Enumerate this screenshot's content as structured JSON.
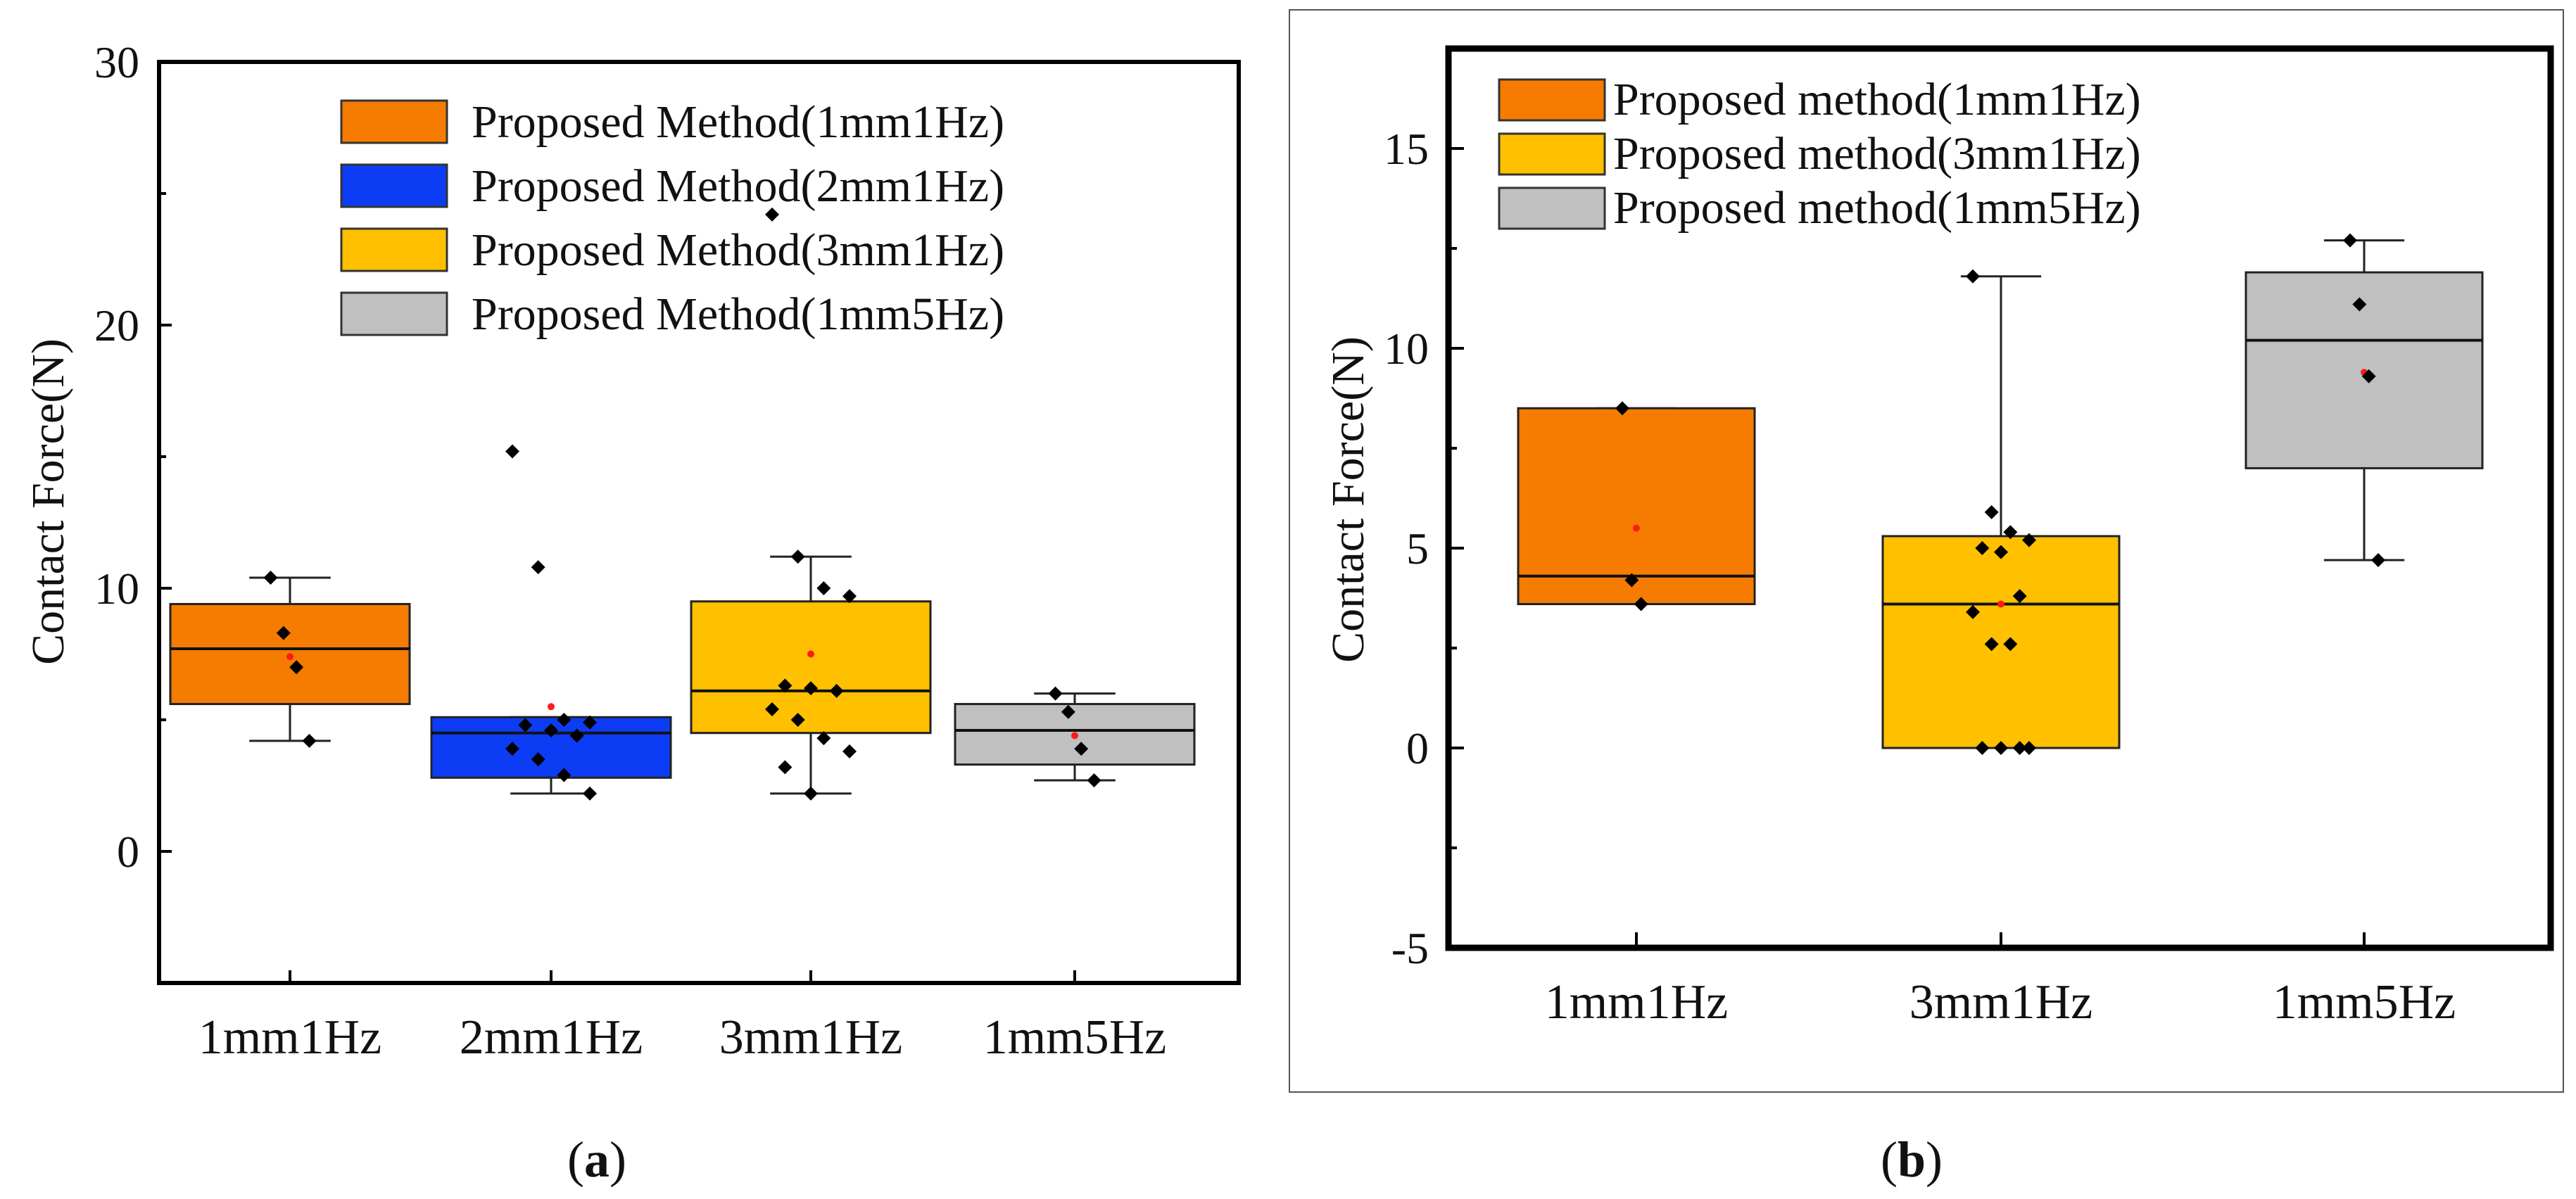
{
  "chart_data": [
    {
      "type": "box",
      "panel": "a",
      "ylabel": "Contact Force(N)",
      "ylim": [
        -5,
        30
      ],
      "yticks": [
        0,
        10,
        20,
        30
      ],
      "categories": [
        "1mm1Hz",
        "2mm1Hz",
        "3mm1Hz",
        "1mm5Hz"
      ],
      "legend_position": "top-right",
      "series": [
        {
          "name": "Proposed Method(1mm1Hz)",
          "color": "#f57c00",
          "q1": 5.6,
          "median": 7.7,
          "q3": 9.4,
          "whisker_low": 4.2,
          "whisker_high": 10.4,
          "mean": 7.4,
          "points": [
            10.4,
            8.3,
            7.0,
            4.2
          ]
        },
        {
          "name": "Proposed Method(2mm1Hz)",
          "color": "#0d3cf5",
          "q1": 2.8,
          "median": 4.5,
          "q3": 5.1,
          "whisker_low": 2.2,
          "whisker_high": 5.1,
          "mean": 5.5,
          "points": [
            15.2,
            10.8,
            5.0,
            4.9,
            4.8,
            4.6,
            4.4,
            3.9,
            3.5,
            2.9,
            2.2
          ]
        },
        {
          "name": "Proposed Method(3mm1Hz)",
          "color": "#ffc000",
          "q1": 4.5,
          "median": 6.1,
          "q3": 9.5,
          "whisker_low": 2.2,
          "whisker_high": 11.2,
          "mean": 7.5,
          "points": [
            24.2,
            11.2,
            10.0,
            9.7,
            6.3,
            6.2,
            6.1,
            5.4,
            5.0,
            4.3,
            3.8,
            3.2,
            2.2
          ]
        },
        {
          "name": "Proposed Method(1mm5Hz)",
          "color": "#c0c0c0",
          "q1": 3.3,
          "median": 4.6,
          "q3": 5.6,
          "whisker_low": 2.7,
          "whisker_high": 6.0,
          "mean": 4.4,
          "points": [
            6.0,
            5.3,
            3.9,
            2.7
          ]
        }
      ]
    },
    {
      "type": "box",
      "panel": "b",
      "ylabel": "Contact Force(N)",
      "ylim": [
        -5,
        17.5
      ],
      "yticks": [
        -5,
        0,
        5,
        10,
        15
      ],
      "categories": [
        "1mm1Hz",
        "3mm1Hz",
        "1mm5Hz"
      ],
      "legend_position": "top-left",
      "series": [
        {
          "name": "Proposed method(1mm1Hz)",
          "color": "#f57c00",
          "q1": 3.6,
          "median": 4.3,
          "q3": 8.5,
          "whisker_low": 3.6,
          "whisker_high": 8.5,
          "mean": 5.5,
          "points": [
            8.5,
            4.2,
            3.6
          ]
        },
        {
          "name": "Proposed method(3mm1Hz)",
          "color": "#ffc000",
          "q1": 0,
          "median": 3.6,
          "q3": 5.3,
          "whisker_low": 0,
          "whisker_high": 11.8,
          "mean": 3.6,
          "points": [
            11.8,
            5.9,
            5.4,
            5.2,
            5.0,
            4.9,
            3.8,
            3.4,
            2.6,
            2.6,
            0,
            0,
            0,
            0
          ]
        },
        {
          "name": "Proposed method(1mm5Hz)",
          "color": "#c0c0c0",
          "q1": 7.0,
          "median": 10.2,
          "q3": 11.9,
          "whisker_low": 4.7,
          "whisker_high": 12.7,
          "mean": 9.4,
          "points": [
            12.7,
            11.1,
            9.3,
            4.7
          ]
        }
      ]
    }
  ],
  "captions": {
    "a": "a",
    "b": "b"
  }
}
